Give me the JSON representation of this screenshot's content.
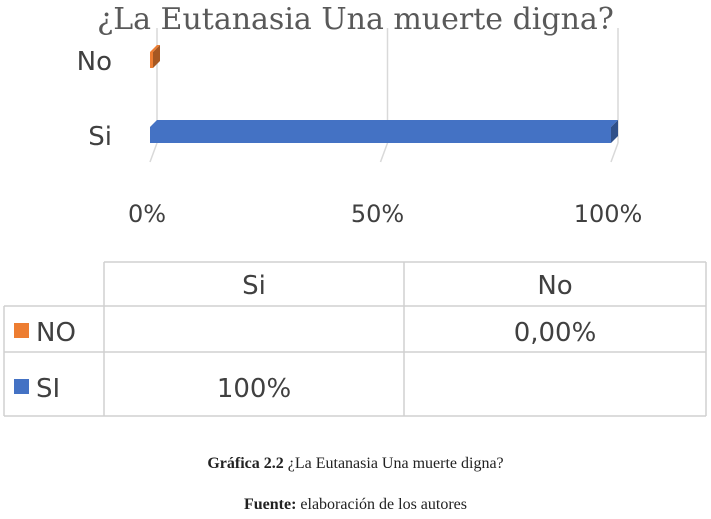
{
  "chart_data": {
    "type": "bar",
    "orientation": "horizontal",
    "title": "¿La Eutanasia Una muerte digna?",
    "categories": [
      "Si",
      "No"
    ],
    "series": [
      {
        "name": "SI",
        "values": [
          100,
          null
        ],
        "color": "#4472C4"
      },
      {
        "name": "NO",
        "values": [
          null,
          0
        ],
        "color": "#ED7D31"
      }
    ],
    "xlim": [
      0,
      100
    ],
    "x_ticks": [
      "0%",
      "50%",
      "100%"
    ],
    "grid": true,
    "data_table": {
      "headers": [
        "Si",
        "No"
      ],
      "rows": [
        {
          "label": "NO",
          "values": [
            "",
            "0,00%"
          ]
        },
        {
          "label": "SI",
          "values": [
            "100%",
            ""
          ]
        }
      ]
    }
  },
  "caption": {
    "figure_label": "Gráfica 2.2",
    "figure_text": "¿La Eutanasia Una muerte digna?",
    "source_label": "Fuente:",
    "source_text": "elaboración de los autores"
  }
}
